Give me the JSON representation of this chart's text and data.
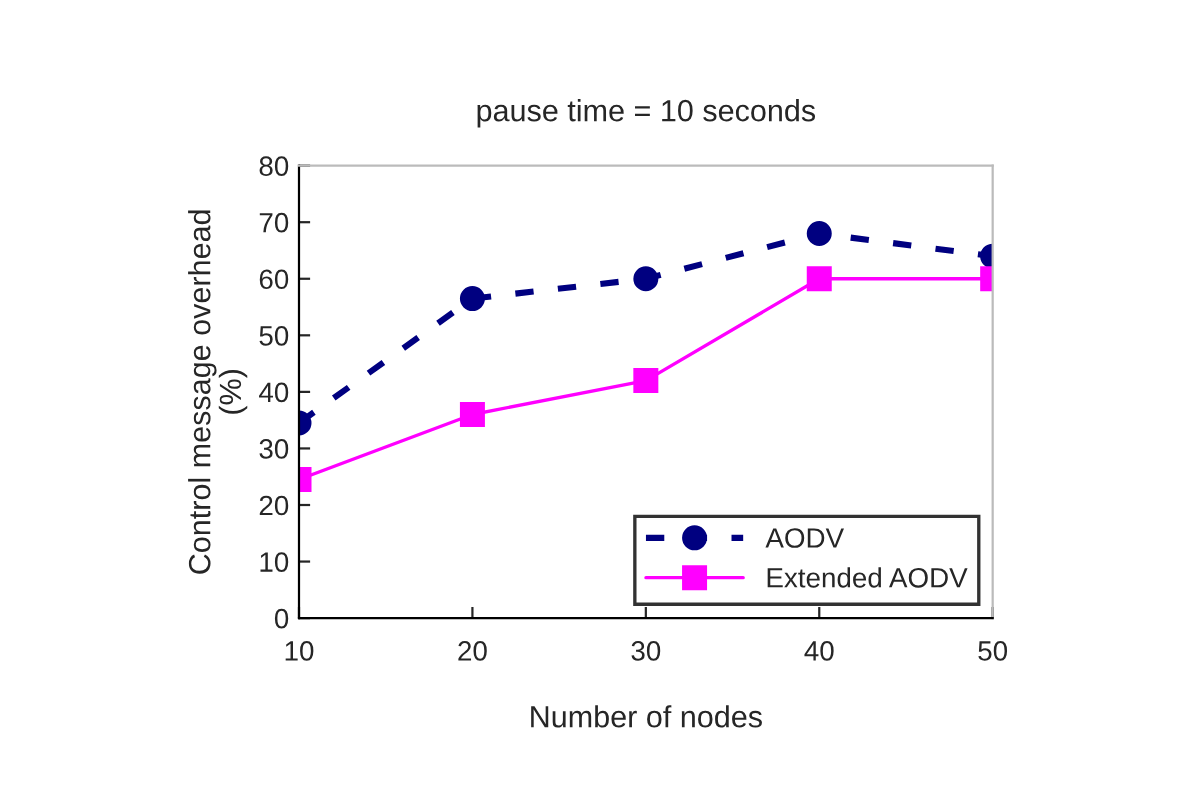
{
  "chart_data": {
    "type": "line",
    "title": "pause time = 10 seconds",
    "xlabel": "Number of nodes",
    "ylabel": "Control message overhead\n(%)",
    "x": [
      10,
      20,
      30,
      40,
      50
    ],
    "series": [
      {
        "name": "AODV",
        "color": "#000080",
        "values": [
          34.5,
          56.5,
          60,
          68,
          64
        ],
        "marker": "circle",
        "line_style": "dashed"
      },
      {
        "name": "Extended AODV",
        "color": "#ff00ff",
        "values": [
          24.5,
          36,
          42,
          60,
          60
        ],
        "marker": "square",
        "line_style": "solid"
      }
    ],
    "xlim": [
      10,
      50
    ],
    "xticks": [
      10,
      20,
      30,
      40,
      50
    ],
    "ylim": [
      0,
      80
    ],
    "yticks": [
      0,
      10,
      20,
      30,
      40,
      50,
      60,
      70,
      80
    ],
    "grid": false,
    "legend": "bottom right"
  }
}
